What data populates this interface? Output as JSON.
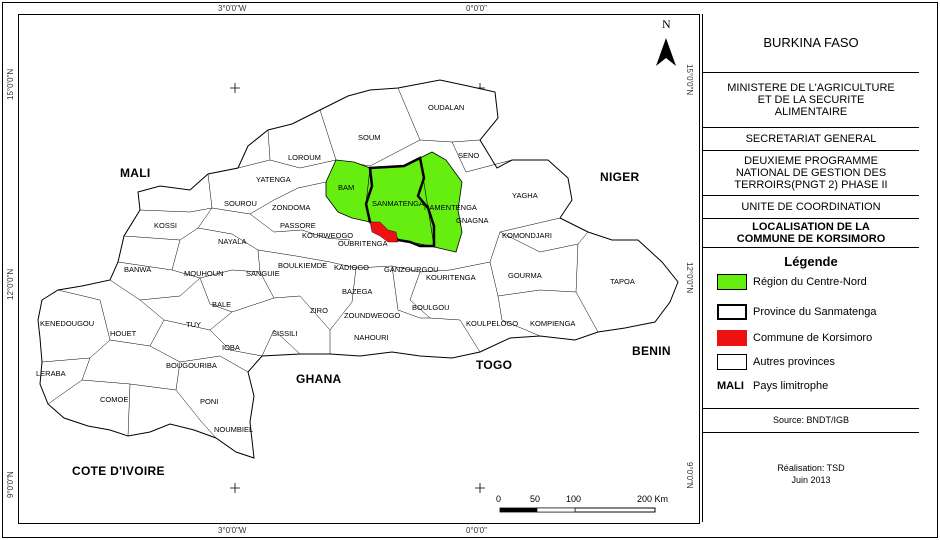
{
  "coords": {
    "top_left": "3°0'0\"W",
    "top_right": "0°0'0\"",
    "bottom_left": "3°0'0\"W",
    "bottom_right": "0°0'0\"",
    "left_top": "15°0'0\"N",
    "left_mid": "12°0'0\"N",
    "left_bot": "9°0'0\"N",
    "right_top": "15°0'0\"N",
    "right_mid": "12°0'0\"N",
    "right_bot": "9°0'0\"N"
  },
  "north_label": "N",
  "countries": {
    "mali_top": "MALI",
    "niger": "NIGER",
    "benin": "BENIN",
    "togo": "TOGO",
    "ghana": "GHANA",
    "cote": "COTE D'IVOIRE"
  },
  "provinces": {
    "oudalan": "OUDALAN",
    "soum": "SOUM",
    "seno": "SENO",
    "loroum": "LOROUM",
    "yatenga": "YATENGA",
    "bam": "BAM",
    "sanmatenga": "SANMATENGA",
    "namentenga": "NAMENTENGA",
    "yagha": "YAGHA",
    "gnagna": "GNAGNA",
    "sourou": "SOUROU",
    "zondoma": "ZONDOMA",
    "passore": "PASSORE",
    "kossi": "KOSSI",
    "nayala": "NAYALA",
    "oubritenga": "OUBRITENGA",
    "kourweogo": "KOURWEOGO",
    "komondjari": "KOMONDJARI",
    "banwa": "BANWA",
    "mouhoun": "MOUHOUN",
    "sanguie": "SANGUIE",
    "boulkiemde": "BOULKIEMDE",
    "kadiogo": "KADIOGO",
    "ganzourgou": "GANZOURGOU",
    "kouritenga": "KOURITENGA",
    "gourma": "GOURMA",
    "tapoa": "TAPOA",
    "bale": "BALE",
    "bazega": "BAZEGA",
    "kenedougou": "KENEDOUGOU",
    "houet": "HOUET",
    "tuy": "TUY",
    "ziro": "ZIRO",
    "zoundweogo": "ZOUNDWEOGO",
    "boulgou": "BOULGOU",
    "koulpelogo": "KOULPELOGO",
    "kompienga": "KOMPIENGA",
    "sissili": "SISSILI",
    "nahouri": "NAHOURI",
    "ioba": "IOBA",
    "bougouriba": "BOUGOURIBA",
    "leraba": "LERABA",
    "comoe": "COMOE",
    "poni": "PONI",
    "noumbiel": "NOUMBIEL"
  },
  "scale": {
    "t0": "0",
    "t50": "50",
    "t100": "100",
    "t200": "200 Km"
  },
  "panel": {
    "country": "BURKINA FASO",
    "ministry": "MINISTERE DE L'AGRICULTURE ET DE LA SECURITE ALIMENTAIRE",
    "secretariat": "SECRETARIAT GENERAL",
    "programme": "DEUXIEME PROGRAMME NATIONAL DE GESTION DES TERROIRS(PNGT 2) PHASE II",
    "unite": "UNITE DE COORDINATION",
    "localisation": "LOCALISATION DE LA COMMUNE DE KORSIMORO",
    "legend_title": "Légende",
    "legend": {
      "region": "Région du Centre-Nord",
      "province": "Province du Sanmatenga",
      "commune": "Commune de Korsimoro",
      "autres": "Autres provinces",
      "pays_key": "MALI",
      "pays": "Pays limitrophe"
    },
    "source": "Source: BNDT/IGB",
    "realisation": "Réalisation: TSD",
    "date": "Juin 2013"
  },
  "colors": {
    "region": "#66ee11",
    "commune": "#ee1111",
    "province_border": "#000000",
    "other": "#ffffff"
  }
}
